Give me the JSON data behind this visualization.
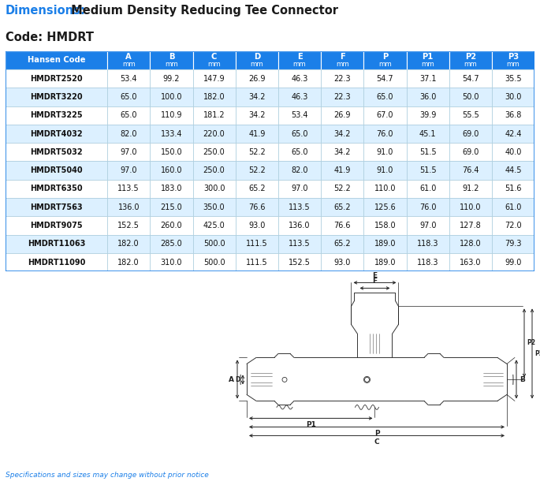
{
  "title_prefix": "Dimensions:",
  "title_main": " Medium Density Reducing Tee Connector",
  "title_line2": "Code: HMDRT",
  "title_color": "#1B7FE8",
  "title_main_color": "#1B1B1B",
  "header_bg": "#1B7FE8",
  "header_text_color": "#FFFFFF",
  "row_even_bg": "#FFFFFF",
  "row_odd_bg": "#DCF0FF",
  "columns": [
    "Hansen Code",
    "A\nmm",
    "B\nmm",
    "C\nmm",
    "D\nmm",
    "E\nmm",
    "F\nmm",
    "P\nmm",
    "P1\nmm",
    "P2\nmm",
    "P3\nmm"
  ],
  "col_widths": [
    1.55,
    0.65,
    0.65,
    0.65,
    0.65,
    0.65,
    0.65,
    0.65,
    0.65,
    0.65,
    0.65
  ],
  "rows": [
    [
      "HMDRT2520",
      "53.4",
      "99.2",
      "147.9",
      "26.9",
      "46.3",
      "22.3",
      "54.7",
      "37.1",
      "54.7",
      "35.5"
    ],
    [
      "HMDRT3220",
      "65.0",
      "100.0",
      "182.0",
      "34.2",
      "46.3",
      "22.3",
      "65.0",
      "36.0",
      "50.0",
      "30.0"
    ],
    [
      "HMDRT3225",
      "65.0",
      "110.9",
      "181.2",
      "34.2",
      "53.4",
      "26.9",
      "67.0",
      "39.9",
      "55.5",
      "36.8"
    ],
    [
      "HMDRT4032",
      "82.0",
      "133.4",
      "220.0",
      "41.9",
      "65.0",
      "34.2",
      "76.0",
      "45.1",
      "69.0",
      "42.4"
    ],
    [
      "HMDRT5032",
      "97.0",
      "150.0",
      "250.0",
      "52.2",
      "65.0",
      "34.2",
      "91.0",
      "51.5",
      "69.0",
      "40.0"
    ],
    [
      "HMDRT5040",
      "97.0",
      "160.0",
      "250.0",
      "52.2",
      "82.0",
      "41.9",
      "91.0",
      "51.5",
      "76.4",
      "44.5"
    ],
    [
      "HMDRT6350",
      "113.5",
      "183.0",
      "300.0",
      "65.2",
      "97.0",
      "52.2",
      "110.0",
      "61.0",
      "91.2",
      "51.6"
    ],
    [
      "HMDRT7563",
      "136.0",
      "215.0",
      "350.0",
      "76.6",
      "113.5",
      "65.2",
      "125.6",
      "76.0",
      "110.0",
      "61.0"
    ],
    [
      "HMDRT9075",
      "152.5",
      "260.0",
      "425.0",
      "93.0",
      "136.0",
      "76.6",
      "158.0",
      "97.0",
      "127.8",
      "72.0"
    ],
    [
      "HMDRT11063",
      "182.0",
      "285.0",
      "500.0",
      "111.5",
      "113.5",
      "65.2",
      "189.0",
      "118.3",
      "128.0",
      "79.3"
    ],
    [
      "HMDRT11090",
      "182.0",
      "310.0",
      "500.0",
      "111.5",
      "152.5",
      "93.0",
      "189.0",
      "118.3",
      "163.0",
      "99.0"
    ]
  ],
  "footnote": "Specifications and sizes may change without prior notice",
  "footnote_color": "#1B7FE8",
  "table_border_color": "#1B7FE8",
  "dim_color": "#222222",
  "line_color": "#333333"
}
